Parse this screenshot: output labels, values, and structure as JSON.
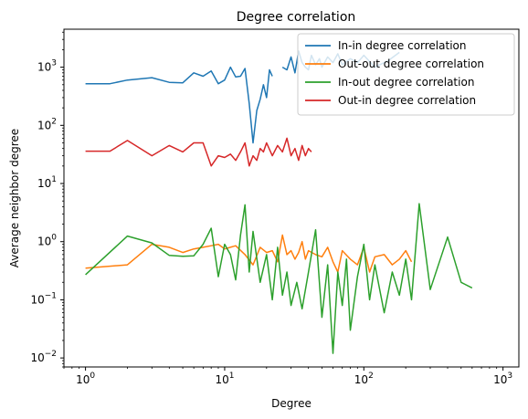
{
  "chart_data": {
    "type": "line",
    "title": "Degree correlation",
    "xlabel": "Degree",
    "ylabel": "Average neighbor degree",
    "xscale": "log",
    "yscale": "log",
    "xlim": [
      0.7,
      1300
    ],
    "ylim": [
      0.007,
      4500
    ],
    "xticks": [
      {
        "value": 1,
        "base": "10",
        "exp": "0"
      },
      {
        "value": 10,
        "base": "10",
        "exp": "1"
      },
      {
        "value": 100,
        "base": "10",
        "exp": "2"
      },
      {
        "value": 1000,
        "base": "10",
        "exp": "3"
      }
    ],
    "yticks": [
      {
        "value": 0.01,
        "base": "10",
        "exp": "−2"
      },
      {
        "value": 0.1,
        "base": "10",
        "exp": "−1"
      },
      {
        "value": 1,
        "base": "10",
        "exp": "0"
      },
      {
        "value": 10,
        "base": "10",
        "exp": "1"
      },
      {
        "value": 100,
        "base": "10",
        "exp": "2"
      },
      {
        "value": 1000,
        "base": "10",
        "exp": "3"
      }
    ],
    "grid": false,
    "legend_position": "top-right",
    "series": [
      {
        "name": "In-in degree correlation",
        "color": "#1f77b4",
        "x": [
          1,
          1.5,
          2,
          3,
          4,
          5,
          6,
          7,
          8,
          9,
          10,
          11,
          12,
          13,
          14,
          15,
          16,
          17,
          18,
          19,
          20,
          21,
          22,
          25,
          26,
          28,
          30,
          32,
          34,
          36,
          38,
          40,
          42,
          45,
          48,
          50,
          55,
          60,
          65,
          70,
          80,
          90,
          100,
          120,
          150,
          180
        ],
        "y": [
          520,
          520,
          600,
          660,
          550,
          540,
          800,
          700,
          860,
          520,
          600,
          1000,
          680,
          700,
          950,
          240,
          50,
          180,
          280,
          500,
          300,
          900,
          700,
          null,
          1000,
          900,
          1500,
          800,
          1900,
          1200,
          1000,
          900,
          1600,
          1100,
          1400,
          1000,
          1500,
          1200,
          1700,
          1100,
          1400,
          1200,
          1600,
          1000,
          1300,
          1800
        ]
      },
      {
        "name": "Out-out degree correlation",
        "color": "#ff7f0e",
        "x": [
          1,
          2,
          3,
          4,
          5,
          6,
          7,
          8,
          9,
          10,
          12,
          14,
          16,
          18,
          20,
          22,
          24,
          26,
          28,
          30,
          32,
          34,
          36,
          38,
          40,
          45,
          50,
          55,
          60,
          65,
          70,
          80,
          90,
          100,
          110,
          120,
          140,
          160,
          180,
          200,
          220
        ],
        "y": [
          0.35,
          0.4,
          0.9,
          0.8,
          0.65,
          0.75,
          0.8,
          0.85,
          0.9,
          0.75,
          0.85,
          0.6,
          0.4,
          0.8,
          0.65,
          0.7,
          0.45,
          1.3,
          0.6,
          0.7,
          0.5,
          0.65,
          1.0,
          0.5,
          0.7,
          0.6,
          0.55,
          0.8,
          0.45,
          0.3,
          0.7,
          0.5,
          0.4,
          0.8,
          0.3,
          0.55,
          0.6,
          0.4,
          0.5,
          0.7,
          0.45
        ]
      },
      {
        "name": "In-out degree correlation",
        "color": "#2ca02c",
        "x": [
          1,
          2,
          3,
          4,
          5,
          6,
          7,
          8,
          9,
          10,
          11,
          12,
          13,
          14,
          15,
          16,
          18,
          20,
          22,
          24,
          26,
          28,
          30,
          33,
          36,
          40,
          45,
          50,
          55,
          60,
          65,
          70,
          75,
          80,
          90,
          100,
          110,
          120,
          140,
          160,
          180,
          200,
          220,
          250,
          300,
          400,
          500,
          600
        ],
        "y": [
          0.27,
          1.25,
          0.95,
          0.58,
          0.56,
          0.57,
          0.9,
          1.7,
          0.25,
          0.9,
          0.6,
          0.22,
          1.3,
          4.3,
          0.3,
          1.5,
          0.2,
          0.6,
          0.1,
          0.8,
          0.12,
          0.3,
          0.08,
          0.2,
          0.07,
          0.3,
          1.6,
          0.05,
          0.4,
          0.012,
          0.3,
          0.08,
          0.5,
          0.03,
          0.25,
          0.9,
          0.1,
          0.4,
          0.06,
          0.3,
          0.12,
          0.5,
          0.1,
          4.5,
          0.15,
          1.2,
          0.2,
          0.16
        ]
      },
      {
        "name": "Out-in degree correlation",
        "color": "#d62728",
        "x": [
          1,
          1.5,
          2,
          3,
          4,
          5,
          6,
          7,
          8,
          9,
          10,
          11,
          12,
          13,
          14,
          15,
          16,
          17,
          18,
          19,
          20,
          22,
          24,
          26,
          28,
          30,
          32,
          34,
          36,
          38,
          40,
          42
        ],
        "y": [
          36,
          36,
          55,
          30,
          45,
          35,
          50,
          50,
          20,
          30,
          28,
          32,
          25,
          35,
          50,
          20,
          30,
          25,
          40,
          35,
          50,
          30,
          45,
          35,
          60,
          30,
          40,
          25,
          45,
          30,
          40,
          35
        ]
      }
    ]
  }
}
